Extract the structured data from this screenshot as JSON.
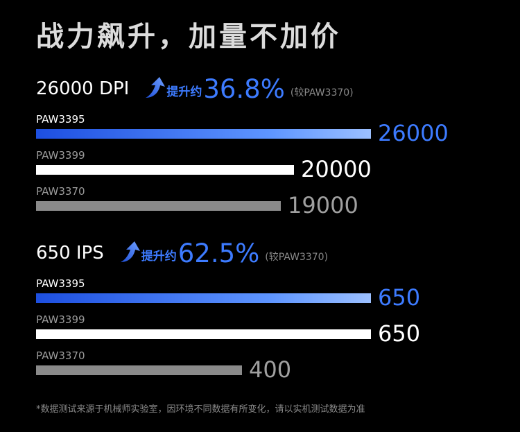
{
  "title": "战力飙升，加量不加价",
  "colors": {
    "accent": "#3d7bff",
    "white": "#ffffff",
    "gray": "#8a8a8a",
    "background": "#000000"
  },
  "sections": [
    {
      "metric": "26000 DPI",
      "improve_label": "提升约",
      "improve_pct": "36.8%",
      "compare": "(较PAW3370)",
      "arrow_icon": "arrow-up-icon"
    },
    {
      "metric": "650 IPS",
      "improve_label": "提升约",
      "improve_pct": "62.5%",
      "compare": "(较PAW3370)",
      "arrow_icon": "arrow-up-icon"
    }
  ],
  "chart_data": [
    {
      "type": "bar",
      "orientation": "horizontal",
      "title": "26000 DPI",
      "categories": [
        "PAW3395",
        "PAW3399",
        "PAW3370"
      ],
      "values": [
        26000,
        20000,
        19000
      ],
      "value_labels": [
        "26000",
        "20000",
        "19000"
      ],
      "colors": [
        "#3d7bff",
        "#ffffff",
        "#8a8a8a"
      ],
      "xlim": [
        0,
        26000
      ]
    },
    {
      "type": "bar",
      "orientation": "horizontal",
      "title": "650 IPS",
      "categories": [
        "PAW3395",
        "PAW3399",
        "PAW3370"
      ],
      "values": [
        650,
        650,
        400
      ],
      "value_labels": [
        "650",
        "650",
        "400"
      ],
      "colors": [
        "#3d7bff",
        "#ffffff",
        "#8a8a8a"
      ],
      "xlim": [
        0,
        650
      ]
    }
  ],
  "footnote": "*数据测试来源于机械师实验室，因环境不同数据有所变化，请以实机测试数据为准"
}
